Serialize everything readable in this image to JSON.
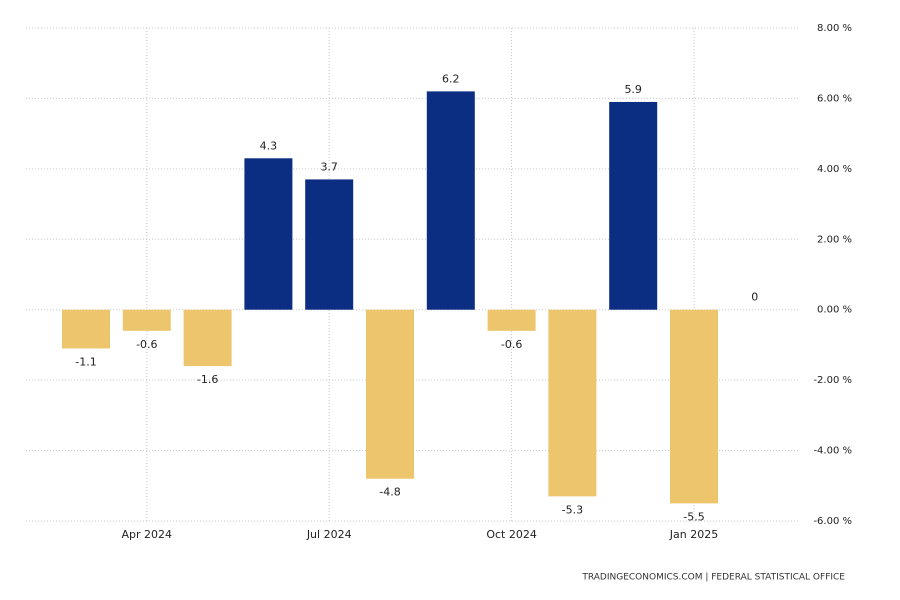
{
  "chart_data": {
    "type": "bar",
    "categories": [
      null,
      "Apr 2024",
      null,
      null,
      "Jul 2024",
      null,
      null,
      "Oct 2024",
      null,
      null,
      "Jan 2025",
      null
    ],
    "values": [
      -1.1,
      -0.6,
      -1.6,
      4.3,
      3.7,
      -4.8,
      6.2,
      -0.6,
      -5.3,
      5.9,
      -5.5,
      0
    ],
    "positive_color": "#0b2e83",
    "negative_color": "#edc56d",
    "ylim": [
      -6,
      8
    ],
    "yticks": [
      {
        "value": -6,
        "label": "-6.00 %"
      },
      {
        "value": -4,
        "label": "-4.00 %"
      },
      {
        "value": -2,
        "label": "-2.00 %"
      },
      {
        "value": 0,
        "label": "0.00 %"
      },
      {
        "value": 2,
        "label": "2.00 %"
      },
      {
        "value": 4,
        "label": "4.00 %"
      },
      {
        "value": 6,
        "label": "6.00 %"
      },
      {
        "value": 8,
        "label": "8.00 %"
      }
    ],
    "grid": true,
    "source": "TRADINGECONOMICS.COM  |  FEDERAL STATISTICAL OFFICE"
  }
}
